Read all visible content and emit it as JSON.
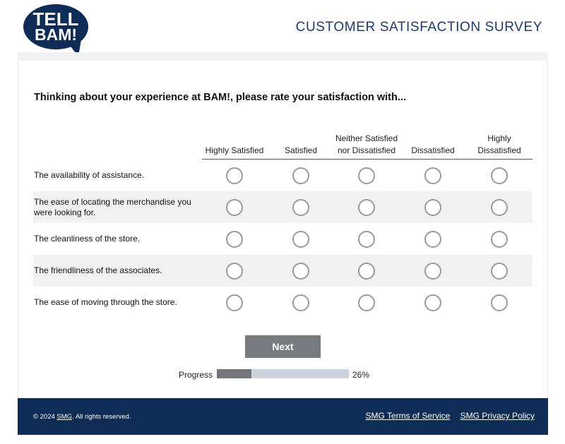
{
  "header": {
    "logo_line1": "TELL",
    "logo_line2": "BAM!",
    "survey_title": "CUSTOMER SATISFACTION SURVEY"
  },
  "colors": {
    "brand_navy": "#0e2c55",
    "title_blue": "#1c3a6b",
    "button_gray": "#777b80",
    "progress_fill": "#73767b",
    "progress_track": "#cdd3dc"
  },
  "question": "Thinking about your experience at BAM!, please rate your satisfaction with...",
  "scale": [
    "Highly Satisfied",
    "Satisfied",
    "Neither Satisfied nor Dissatisfied",
    "Dissatisfied",
    "Highly Dissatisfied"
  ],
  "items": [
    "The availability of assistance.",
    "The ease of locating the merchandise you were looking for.",
    "The cleanliness of the store.",
    "The friendliness of the associates.",
    "The ease of moving through the store."
  ],
  "next_button": "Next",
  "progress": {
    "label": "Progress",
    "percent_text": "26%",
    "fraction": 0.26
  },
  "footer": {
    "copyright_prefix": "© 2024 ",
    "copyright_org": "SMG",
    "copyright_suffix": ". All rights reserved.",
    "terms": "SMG Terms of Service",
    "privacy": "SMG Privacy Policy"
  }
}
